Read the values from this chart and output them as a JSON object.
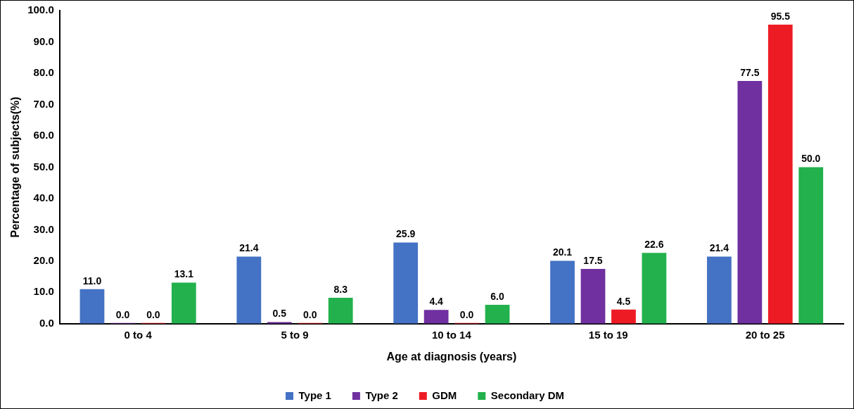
{
  "chart_data": {
    "type": "bar",
    "xlabel": "Age at diagnosis (years)",
    "ylabel": "Percentage of subjects(%)",
    "categories": [
      "0 to 4",
      "5 to 9",
      "10 to 14",
      "15 to 19",
      "20 to 25"
    ],
    "series": [
      {
        "name": "Type 1",
        "color": "#4472c4",
        "values": [
          11.0,
          21.4,
          25.9,
          20.1,
          21.4
        ],
        "value_labels": [
          "11.0",
          "21.4",
          "25.9",
          "20.1",
          "21.4"
        ]
      },
      {
        "name": "Type 2",
        "color": "#7030a0",
        "values": [
          0.0,
          0.5,
          4.4,
          17.5,
          77.5
        ],
        "value_labels": [
          "0.0",
          "0.5",
          "4.4",
          "17.5",
          "77.5"
        ]
      },
      {
        "name": "GDM",
        "color": "#ed1c24",
        "values": [
          0.0,
          0.0,
          0.0,
          4.5,
          95.5
        ],
        "value_labels": [
          "0.0",
          "0.0",
          "0.0",
          "4.5",
          "95.5"
        ]
      },
      {
        "name": "Secondary DM",
        "color": "#22b14c",
        "values": [
          13.1,
          8.3,
          6.0,
          22.6,
          50.0
        ],
        "value_labels": [
          "13.1",
          "8.3",
          "6.0",
          "22.6",
          "50.0"
        ]
      }
    ],
    "ylim": [
      0,
      100
    ],
    "yticks": [
      {
        "value": 0,
        "label": "0.0"
      },
      {
        "value": 10,
        "label": "10.0"
      },
      {
        "value": 20,
        "label": "20.0"
      },
      {
        "value": 30,
        "label": "30.0"
      },
      {
        "value": 40,
        "label": "40.0"
      },
      {
        "value": 50,
        "label": "50.0"
      },
      {
        "value": 60,
        "label": "60.0"
      },
      {
        "value": 70,
        "label": "70.0"
      },
      {
        "value": 80,
        "label": "80.0"
      },
      {
        "value": 90,
        "label": "90.0"
      },
      {
        "value": 100,
        "label": "100.0"
      }
    ],
    "grid": false,
    "legend": "bottom"
  }
}
